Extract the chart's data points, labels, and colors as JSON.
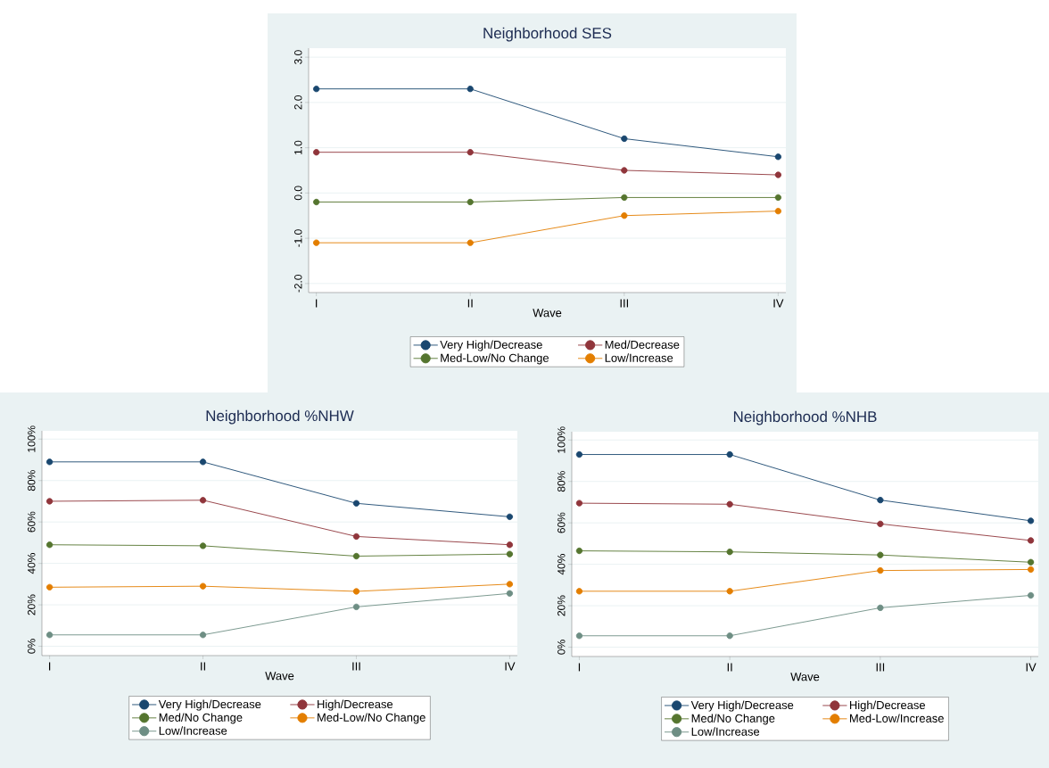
{
  "chart_data": [
    {
      "type": "line",
      "title": "Neighborhood  SES",
      "xlabel": "Wave",
      "categories": [
        "I",
        "II",
        "III",
        "IV"
      ],
      "series": [
        {
          "name": "Very High/Decrease",
          "color": "#1a476f",
          "values": [
            2.3,
            2.3,
            1.2,
            0.8
          ]
        },
        {
          "name": "Med/Decrease",
          "color": "#90353b",
          "values": [
            0.9,
            0.9,
            0.5,
            0.4
          ]
        },
        {
          "name": "Med-Low/No Change",
          "color": "#55752f",
          "values": [
            -0.2,
            -0.2,
            -0.1,
            -0.1
          ]
        },
        {
          "name": "Low/Increase",
          "color": "#e37e00",
          "values": [
            -1.1,
            -1.1,
            -0.5,
            -0.4
          ]
        }
      ],
      "ylim": [
        -2.2,
        3.2
      ],
      "yticks": [
        {
          "value": -2,
          "label": "-2.0"
        },
        {
          "value": -1,
          "label": "-1.0"
        },
        {
          "value": 0,
          "label": "0.0"
        },
        {
          "value": 1,
          "label": "1.0"
        },
        {
          "value": 2,
          "label": "2.0"
        },
        {
          "value": 3,
          "label": "3.0"
        }
      ],
      "grid": "y",
      "legend": "bottom",
      "marker": "circle",
      "line_style": "solid"
    },
    {
      "type": "line",
      "title": "Neighborhood  %NHW",
      "xlabel": "Wave",
      "categories": [
        "I",
        "II",
        "III",
        "IV"
      ],
      "series": [
        {
          "name": "Very High/Decrease",
          "color": "#1a476f",
          "values": [
            89,
            89,
            69,
            62.5
          ]
        },
        {
          "name": "High/Decrease",
          "color": "#90353b",
          "values": [
            70,
            70.5,
            53,
            49
          ]
        },
        {
          "name": "Med/No Change",
          "color": "#55752f",
          "values": [
            49,
            48.5,
            43.5,
            44.5
          ]
        },
        {
          "name": "Med-Low/No Change",
          "color": "#e37e00",
          "values": [
            28.5,
            29,
            26.5,
            30
          ]
        },
        {
          "name": "Low/Increase",
          "color": "#6e8e84",
          "values": [
            5.5,
            5.5,
            19,
            25.5
          ]
        }
      ],
      "ylim": [
        -4.5,
        104
      ],
      "yticks": [
        {
          "value": 0,
          "label": "0%"
        },
        {
          "value": 20,
          "label": "20%"
        },
        {
          "value": 40,
          "label": "40%"
        },
        {
          "value": 60,
          "label": "60%"
        },
        {
          "value": 80,
          "label": "80%"
        },
        {
          "value": 100,
          "label": "100%"
        }
      ],
      "grid": "y",
      "legend": "bottom",
      "marker": "circle",
      "line_style": "solid"
    },
    {
      "type": "line",
      "title": "Neighborhood  %NHB",
      "xlabel": "Wave",
      "categories": [
        "I",
        "II",
        "III",
        "IV"
      ],
      "series": [
        {
          "name": "Very High/Decrease",
          "color": "#1a476f",
          "values": [
            93,
            93,
            71,
            61
          ]
        },
        {
          "name": "High/Decrease",
          "color": "#90353b",
          "values": [
            69.5,
            69,
            59.5,
            51.5
          ]
        },
        {
          "name": "Med/No Change",
          "color": "#55752f",
          "values": [
            46.5,
            46,
            44.5,
            41
          ]
        },
        {
          "name": "Med-Low/Increase",
          "color": "#e37e00",
          "values": [
            27,
            27,
            37,
            37.5
          ]
        },
        {
          "name": "Low/Increase",
          "color": "#6e8e84",
          "values": [
            5.5,
            5.5,
            19,
            25
          ]
        }
      ],
      "ylim": [
        -4.5,
        104
      ],
      "yticks": [
        {
          "value": 0,
          "label": "0%"
        },
        {
          "value": 20,
          "label": "20%"
        },
        {
          "value": 40,
          "label": "40%"
        },
        {
          "value": 60,
          "label": "60%"
        },
        {
          "value": 80,
          "label": "80%"
        },
        {
          "value": 100,
          "label": "100%"
        }
      ],
      "grid": "y",
      "legend": "bottom",
      "marker": "circle",
      "line_style": "solid"
    }
  ]
}
